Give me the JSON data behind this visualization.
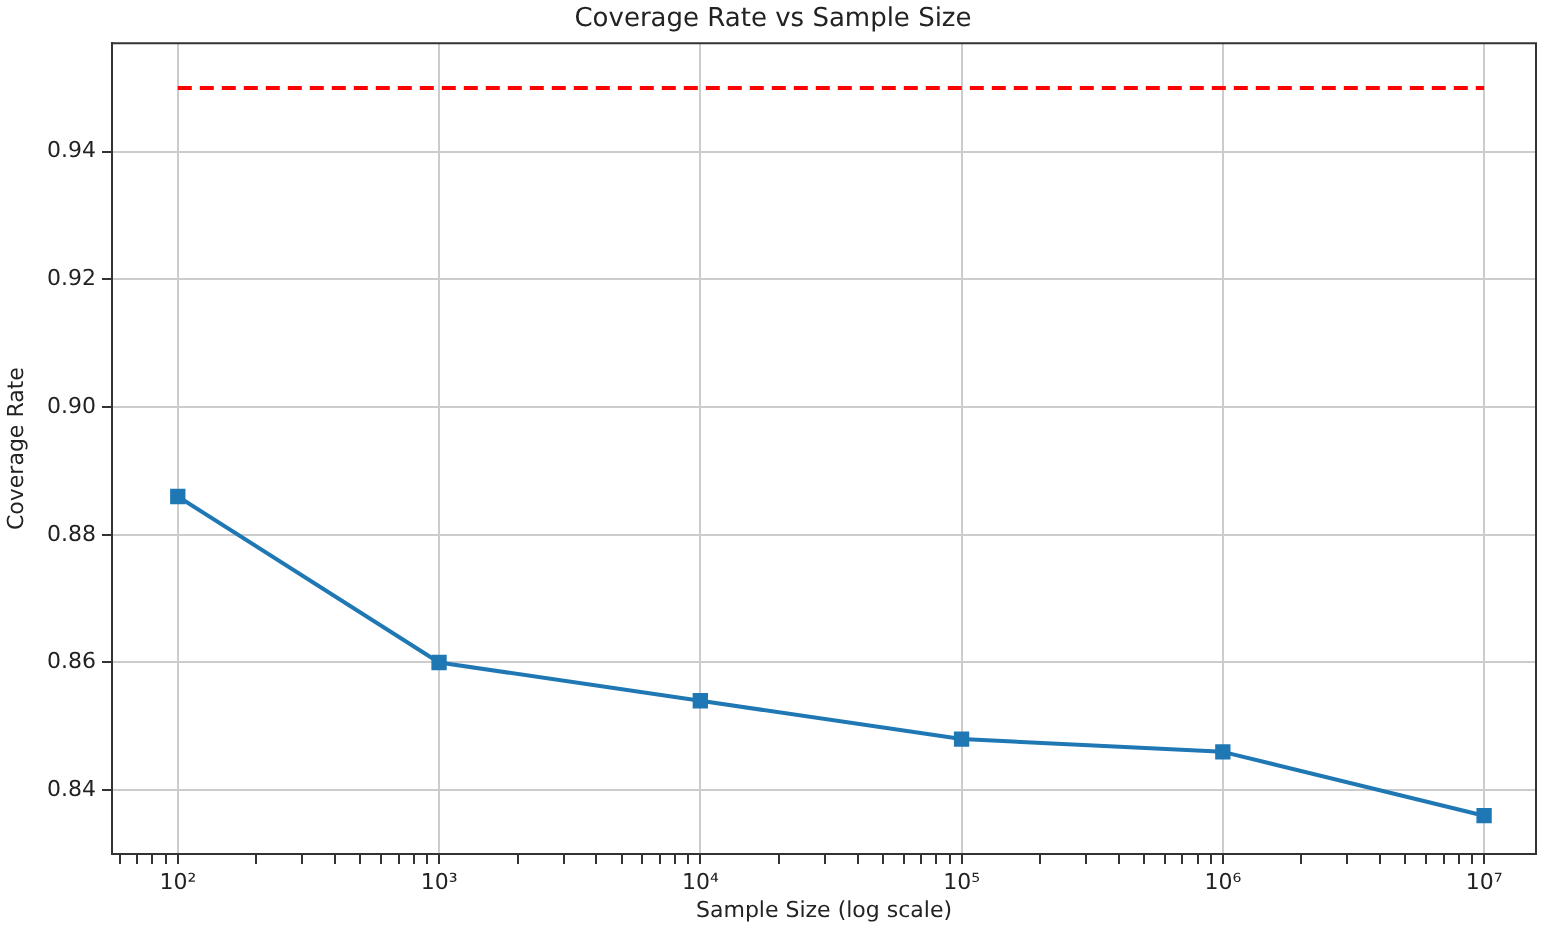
{
  "chart_data": {
    "type": "line",
    "title": "Coverage Rate vs Sample Size",
    "xlabel": "Sample Size (log scale)",
    "ylabel": "Coverage Rate",
    "log": "x",
    "grid": true,
    "marker": "square",
    "legend": false,
    "xlim": [
      56,
      15800000
    ],
    "ylim": [
      0.83,
      0.957
    ],
    "xticks": [
      {
        "value": 60,
        "label": null
      },
      {
        "value": 70,
        "label": null
      },
      {
        "value": 80,
        "label": null
      },
      {
        "value": 90,
        "label": null
      },
      {
        "value": 100,
        "label": "10²"
      },
      {
        "value": 200,
        "label": null
      },
      {
        "value": 300,
        "label": null
      },
      {
        "value": 400,
        "label": null
      },
      {
        "value": 500,
        "label": null
      },
      {
        "value": 600,
        "label": null
      },
      {
        "value": 700,
        "label": null
      },
      {
        "value": 800,
        "label": null
      },
      {
        "value": 900,
        "label": null
      },
      {
        "value": 1000,
        "label": "10³"
      },
      {
        "value": 2000,
        "label": null
      },
      {
        "value": 3000,
        "label": null
      },
      {
        "value": 4000,
        "label": null
      },
      {
        "value": 5000,
        "label": null
      },
      {
        "value": 6000,
        "label": null
      },
      {
        "value": 7000,
        "label": null
      },
      {
        "value": 8000,
        "label": null
      },
      {
        "value": 9000,
        "label": null
      },
      {
        "value": 10000,
        "label": "10⁴"
      },
      {
        "value": 20000,
        "label": null
      },
      {
        "value": 30000,
        "label": null
      },
      {
        "value": 40000,
        "label": null
      },
      {
        "value": 50000,
        "label": null
      },
      {
        "value": 60000,
        "label": null
      },
      {
        "value": 70000,
        "label": null
      },
      {
        "value": 80000,
        "label": null
      },
      {
        "value": 90000,
        "label": null
      },
      {
        "value": 100000,
        "label": "10⁵"
      },
      {
        "value": 200000,
        "label": null
      },
      {
        "value": 300000,
        "label": null
      },
      {
        "value": 400000,
        "label": null
      },
      {
        "value": 500000,
        "label": null
      },
      {
        "value": 600000,
        "label": null
      },
      {
        "value": 700000,
        "label": null
      },
      {
        "value": 800000,
        "label": null
      },
      {
        "value": 900000,
        "label": null
      },
      {
        "value": 1000000,
        "label": "10⁶"
      },
      {
        "value": 2000000,
        "label": null
      },
      {
        "value": 3000000,
        "label": null
      },
      {
        "value": 4000000,
        "label": null
      },
      {
        "value": 5000000,
        "label": null
      },
      {
        "value": 6000000,
        "label": null
      },
      {
        "value": 7000000,
        "label": null
      },
      {
        "value": 8000000,
        "label": null
      },
      {
        "value": 9000000,
        "label": null
      },
      {
        "value": 10000000,
        "label": "10⁷"
      }
    ],
    "yticks": [
      0.84,
      0.86,
      0.88,
      {
        "value": 0.9,
        "label": "0.90"
      },
      0.92,
      0.94
    ],
    "series": [
      {
        "x": [
          100,
          1000,
          10000,
          100000,
          1000000,
          10000000
        ],
        "values": [
          0.886,
          0.86,
          0.854,
          0.848,
          0.846,
          0.836
        ],
        "color": "#1f77b4"
      },
      {
        "x": [
          100,
          10000000
        ],
        "values": [
          0.95,
          0.95
        ],
        "color": "#ff0000",
        "line_style": "dashed",
        "marker": "none"
      }
    ]
  }
}
